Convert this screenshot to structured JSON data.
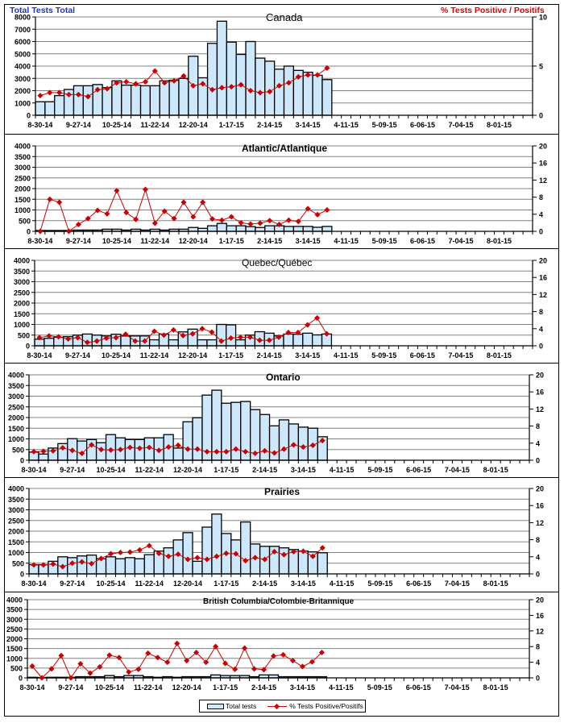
{
  "colors": {
    "bar_fill": "#cce8fa",
    "bar_stroke": "#000000",
    "line": "#cc0000",
    "left_title": "#1a33cc",
    "right_title": "#e00000",
    "grid": "#808080"
  },
  "header": {
    "left_title": "Total Tests Total",
    "right_title": "% Tests Positive / Positifs"
  },
  "legend": {
    "bars": "Total tests",
    "line": "% Tests Positive/Positifs"
  },
  "x_tick_labels": [
    "8-30-14",
    "9-27-14",
    "10-25-14",
    "11-22-14",
    "12-20-14",
    "1-17-15",
    "2-14-15",
    "3-14-15",
    "4-11-15",
    "5-09-15",
    "6-06-15",
    "7-04-15",
    "8-01-15"
  ],
  "chart_data": [
    {
      "type": "bar+line",
      "title": "Canada",
      "x_label_every_weeks": 4,
      "weeks_on_axis": 52,
      "y_left": {
        "label": "Total Tests Total",
        "range": [
          0,
          8000
        ],
        "ticks": [
          "0",
          "1000",
          "2000",
          "3000",
          "4000",
          "5000",
          "6000",
          "7000",
          "8000"
        ]
      },
      "y_right": {
        "label": "% Tests Positive / Positifs",
        "range": [
          0,
          10
        ],
        "ticks": [
          "0",
          "5",
          "10"
        ]
      },
      "series": [
        {
          "name": "Total tests",
          "type": "bar",
          "values": [
            1100,
            1100,
            1600,
            2100,
            2400,
            2400,
            2500,
            2250,
            2800,
            2450,
            2450,
            2400,
            2400,
            2800,
            2850,
            3000,
            4800,
            3050,
            5850,
            7650,
            5950,
            4950,
            6000,
            4650,
            4400,
            3750,
            4000,
            3650,
            3500,
            3250,
            2900
          ]
        },
        {
          "name": "% Tests Positive/Positifs",
          "type": "line",
          "values": [
            2.0,
            2.3,
            2.3,
            2.1,
            2.1,
            1.9,
            2.6,
            2.7,
            3.3,
            3.4,
            3.2,
            3.4,
            4.5,
            3.3,
            3.5,
            4.0,
            3.0,
            3.2,
            2.6,
            2.8,
            2.9,
            3.1,
            2.5,
            2.3,
            2.4,
            3.0,
            3.3,
            3.9,
            4.1,
            4.1,
            4.8
          ]
        }
      ]
    },
    {
      "type": "bar+line",
      "title": "Atlantic/Atlantique",
      "y_left": {
        "range": [
          0,
          4000
        ],
        "ticks": [
          "0",
          "500",
          "1000",
          "1500",
          "2000",
          "2500",
          "3000",
          "3500",
          "4000"
        ]
      },
      "y_right": {
        "range": [
          0,
          20
        ],
        "ticks": [
          "0",
          "4",
          "8",
          "12",
          "16",
          "20"
        ]
      },
      "series": [
        {
          "name": "Total tests",
          "type": "bar",
          "values": [
            40,
            40,
            40,
            40,
            60,
            60,
            60,
            100,
            100,
            60,
            100,
            60,
            100,
            60,
            100,
            100,
            180,
            140,
            260,
            370,
            260,
            260,
            220,
            180,
            260,
            260,
            230,
            230,
            230,
            190,
            230
          ]
        },
        {
          "name": "% Tests Positive/Positifs",
          "type": "line",
          "values": [
            0,
            7.5,
            6.8,
            0,
            1.6,
            3.0,
            4.9,
            4.1,
            9.5,
            4.4,
            2.8,
            9.8,
            1.9,
            4.7,
            3.0,
            6.8,
            3.4,
            6.8,
            2.9,
            2.6,
            3.4,
            2.0,
            1.7,
            1.9,
            2.5,
            1.6,
            2.6,
            2.3,
            5.3,
            3.9,
            5.0
          ]
        }
      ]
    },
    {
      "type": "bar+line",
      "title": "Quebec/Québec",
      "y_left": {
        "range": [
          0,
          4000
        ],
        "ticks": [
          "0",
          "500",
          "1000",
          "1500",
          "2000",
          "2500",
          "3000",
          "3500",
          "4000"
        ]
      },
      "y_right": {
        "range": [
          0,
          20
        ],
        "ticks": [
          "0",
          "4",
          "8",
          "12",
          "16",
          "20"
        ]
      },
      "series": [
        {
          "name": "Total tests",
          "type": "bar",
          "values": [
            310,
            350,
            400,
            430,
            500,
            550,
            500,
            460,
            540,
            460,
            460,
            460,
            280,
            550,
            280,
            650,
            780,
            280,
            280,
            1000,
            980,
            280,
            500,
            660,
            590,
            460,
            550,
            540,
            590,
            510,
            550
          ]
        },
        {
          "name": "% Tests Positive/Positifs",
          "type": "line",
          "values": [
            1.9,
            2.3,
            2.1,
            1.6,
            1.9,
            0.8,
            1.1,
            1.8,
            1.9,
            2.7,
            1.1,
            1.1,
            3.4,
            2.5,
            3.7,
            2.4,
            2.8,
            4.0,
            3.2,
            1.1,
            1.8,
            2.0,
            2.0,
            1.3,
            1.3,
            2.0,
            3.1,
            3.1,
            4.9,
            6.5,
            2.8
          ]
        }
      ]
    },
    {
      "type": "bar+line",
      "title": "Ontario",
      "y_left": {
        "range": [
          0,
          4000
        ],
        "ticks": [
          "0",
          "500",
          "1000",
          "1500",
          "2000",
          "2500",
          "3000",
          "3500",
          "4000"
        ]
      },
      "y_right": {
        "range": [
          0,
          20
        ],
        "ticks": [
          "0",
          "4",
          "8",
          "12",
          "16",
          "20"
        ]
      },
      "series": [
        {
          "name": "Total tests",
          "type": "bar",
          "values": [
            380,
            290,
            570,
            780,
            1010,
            900,
            970,
            820,
            1200,
            1050,
            970,
            970,
            1050,
            1050,
            1200,
            570,
            1800,
            1990,
            3050,
            3280,
            2670,
            2710,
            2750,
            2370,
            2140,
            1610,
            1890,
            1700,
            1550,
            1500,
            1100
          ]
        },
        {
          "name": "% Tests Positive/Positifs",
          "type": "line",
          "values": [
            2.0,
            2.1,
            2.2,
            2.9,
            2.3,
            1.6,
            3.6,
            2.5,
            2.4,
            2.5,
            3.0,
            2.8,
            3.0,
            2.3,
            3.1,
            3.5,
            2.6,
            2.6,
            2.0,
            2.0,
            2.0,
            2.6,
            2.0,
            1.6,
            2.2,
            1.7,
            2.6,
            3.6,
            3.1,
            3.5,
            4.6
          ]
        }
      ]
    },
    {
      "type": "bar+line",
      "title": "Prairies",
      "y_left": {
        "range": [
          0,
          4000
        ],
        "ticks": [
          "0",
          "500",
          "1000",
          "1500",
          "2000",
          "2500",
          "3000",
          "3500",
          "4000"
        ]
      },
      "y_right": {
        "range": [
          0,
          20
        ],
        "ticks": [
          "0",
          "4",
          "8",
          "12",
          "16",
          "20"
        ]
      },
      "series": [
        {
          "name": "Total tests",
          "type": "bar",
          "values": [
            430,
            430,
            590,
            800,
            760,
            840,
            880,
            710,
            800,
            710,
            760,
            710,
            900,
            1070,
            1220,
            1590,
            1930,
            590,
            2190,
            2800,
            1890,
            1590,
            2430,
            1400,
            1290,
            1290,
            1220,
            1140,
            1070,
            1030,
            990
          ]
        },
        {
          "name": "% Tests Positive/Positifs",
          "type": "line",
          "values": [
            2.1,
            2.1,
            2.3,
            1.7,
            2.5,
            2.8,
            2.4,
            3.6,
            4.7,
            5.0,
            5.1,
            5.6,
            6.6,
            4.8,
            4.1,
            4.6,
            3.4,
            3.8,
            3.4,
            4.1,
            4.8,
            4.7,
            3.1,
            3.8,
            3.4,
            5.2,
            4.5,
            5.2,
            5.3,
            4.1,
            6.1
          ]
        }
      ]
    },
    {
      "type": "bar+line",
      "title": "British Columbia/Colombie-Britannique",
      "y_left": {
        "range": [
          0,
          4000
        ],
        "ticks": [
          "0",
          "500",
          "1000",
          "1500",
          "2000",
          "2500",
          "3000",
          "3500",
          "4000"
        ]
      },
      "y_right": {
        "range": [
          0,
          20
        ],
        "ticks": [
          "0",
          "4",
          "8",
          "12",
          "16",
          "20"
        ]
      },
      "series": [
        {
          "name": "Total tests",
          "type": "bar",
          "values": [
            30,
            20,
            30,
            30,
            30,
            60,
            60,
            60,
            120,
            60,
            120,
            120,
            60,
            30,
            60,
            30,
            60,
            60,
            60,
            150,
            120,
            120,
            120,
            60,
            150,
            150,
            60,
            60,
            60,
            60,
            60
          ]
        },
        {
          "name": "% Tests Positive/Positifs",
          "type": "line",
          "values": [
            3.0,
            0,
            2.3,
            5.7,
            0,
            3.6,
            1.2,
            2.8,
            5.8,
            5.2,
            1.5,
            2.2,
            6.3,
            5.2,
            4.0,
            8.8,
            4.4,
            6.5,
            4.0,
            8.0,
            3.7,
            2.2,
            7.6,
            2.3,
            2.1,
            5.6,
            5.9,
            4.4,
            2.9,
            4.1,
            6.5
          ]
        }
      ]
    }
  ]
}
